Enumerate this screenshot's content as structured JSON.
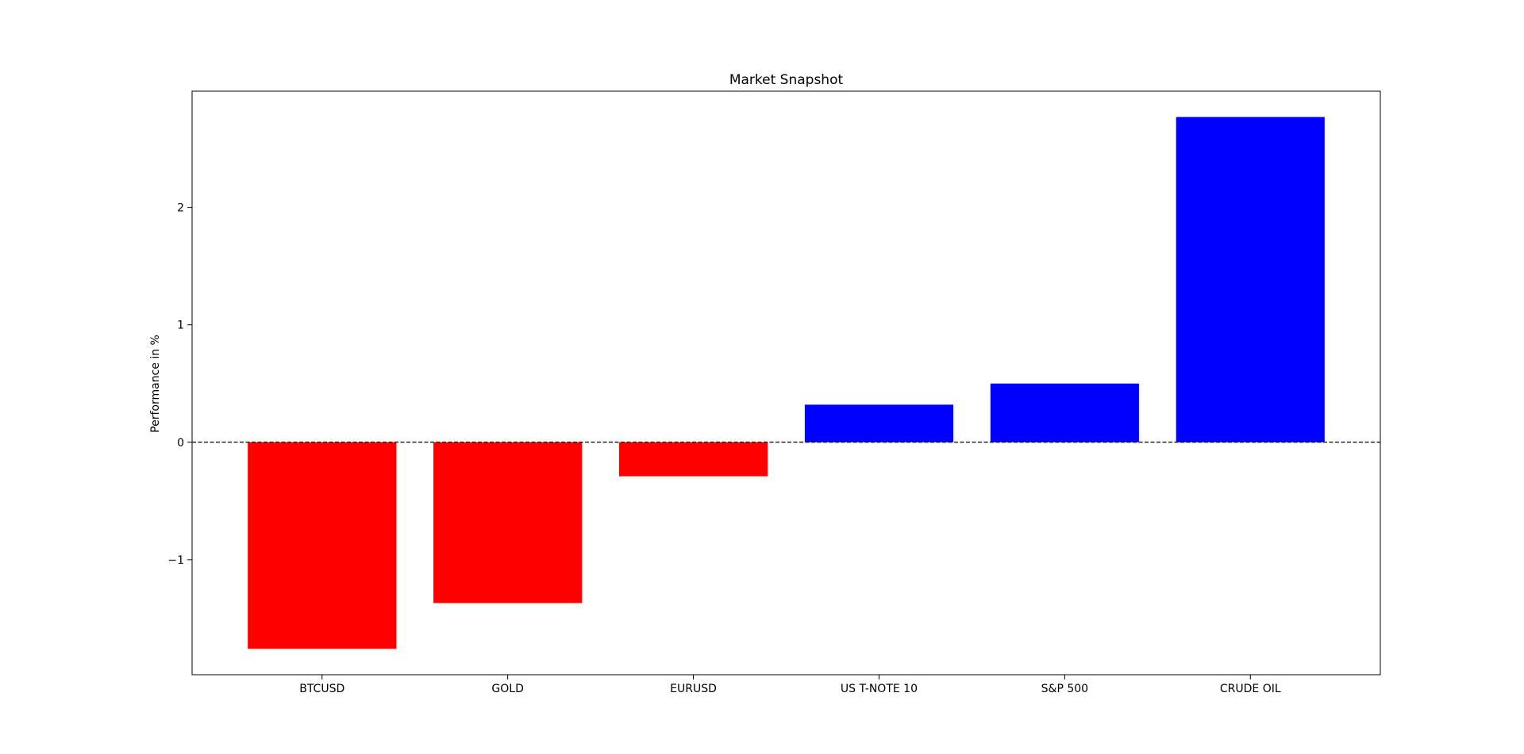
{
  "chart_data": {
    "type": "bar",
    "title": "Market Snapshot",
    "xlabel": "",
    "ylabel": "Performance in %",
    "categories": [
      "BTCUSD",
      "GOLD",
      "EURUSD",
      "US T-NOTE 10",
      "S&P 500",
      "CRUDE OIL"
    ],
    "values": [
      -1.76,
      -1.37,
      -0.29,
      0.32,
      0.5,
      2.77
    ],
    "ylim": [
      -1.98,
      2.99
    ],
    "yticks": [
      -1,
      0,
      1,
      2
    ],
    "ytick_labels": [
      "−1",
      "0",
      "1",
      "2"
    ],
    "colors": {
      "negative": "#ff0000",
      "positive": "#0000ff",
      "zero_line": "#000000"
    },
    "zero_line": "dashed",
    "grid": false,
    "legend": "none"
  }
}
